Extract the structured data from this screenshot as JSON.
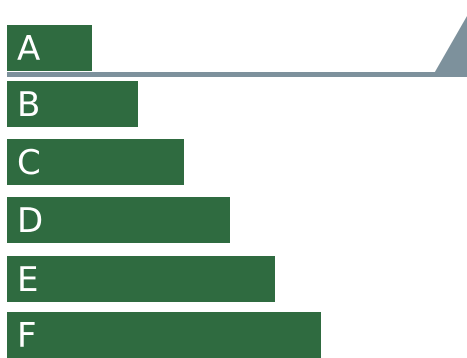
{
  "colors": {
    "bar": "#2f6b40",
    "indicator": "#7d919c",
    "label": "#ffffff"
  },
  "ratings": [
    {
      "label": "A"
    },
    {
      "label": "B"
    },
    {
      "label": "C"
    },
    {
      "label": "D"
    },
    {
      "label": "E"
    },
    {
      "label": "F"
    }
  ],
  "indicator": {
    "points_to": "A"
  }
}
